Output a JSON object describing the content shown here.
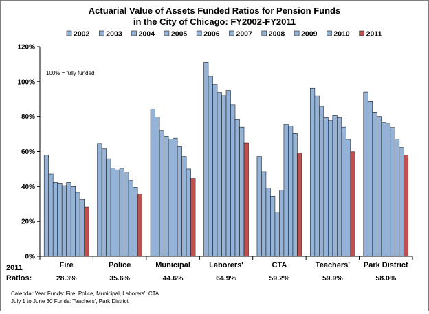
{
  "chart_data": {
    "type": "bar",
    "title": "Actuarial Value of Assets Funded Ratios for Pension Funds",
    "subtitle": "in the City of Chicago: FY2002-FY2011",
    "ylim": [
      0,
      120
    ],
    "yticks": [
      "0%",
      "20%",
      "40%",
      "60%",
      "80%",
      "100%",
      "120%"
    ],
    "grid": false,
    "legend_position": "top",
    "annotation": "100% = fully funded",
    "categories": [
      "Fire",
      "Police",
      "Municipal",
      "Laborers'",
      "CTA",
      "Teachers'",
      "Park District"
    ],
    "series": [
      {
        "name": "2002",
        "color": "#95b3d7",
        "values": [
          58.0,
          64.6,
          84.5,
          111.2,
          57.2,
          96.3,
          94.0
        ]
      },
      {
        "name": "2003",
        "color": "#95b3d7",
        "values": [
          47.2,
          61.5,
          79.7,
          103.1,
          48.4,
          92.0,
          88.8
        ]
      },
      {
        "name": "2004",
        "color": "#95b3d7",
        "values": [
          42.3,
          55.8,
          72.1,
          98.5,
          39.1,
          85.8,
          82.5
        ]
      },
      {
        "name": "2005",
        "color": "#95b3d7",
        "values": [
          41.6,
          50.6,
          68.7,
          93.8,
          34.5,
          79.3,
          80.0
        ]
      },
      {
        "name": "2006",
        "color": "#95b3d7",
        "values": [
          40.5,
          49.5,
          67.1,
          92.1,
          25.3,
          77.9,
          76.7
        ]
      },
      {
        "name": "2007",
        "color": "#95b3d7",
        "values": [
          42.3,
          50.4,
          67.6,
          95.0,
          37.9,
          80.5,
          76.0
        ]
      },
      {
        "name": "2008",
        "color": "#95b3d7",
        "values": [
          40.0,
          48.1,
          62.8,
          86.6,
          75.5,
          79.4,
          73.7
        ]
      },
      {
        "name": "2009",
        "color": "#95b3d7",
        "values": [
          36.6,
          43.4,
          57.2,
          78.5,
          74.6,
          73.9,
          67.1
        ]
      },
      {
        "name": "2010",
        "color": "#95b3d7",
        "values": [
          32.6,
          39.6,
          50.0,
          73.9,
          70.3,
          66.9,
          62.3
        ]
      },
      {
        "name": "2011",
        "color": "#c0504d",
        "values": [
          28.3,
          35.6,
          44.6,
          64.9,
          59.2,
          59.9,
          58.0
        ]
      }
    ],
    "ratios_header": [
      "2011",
      "Ratios:"
    ],
    "ratios": [
      "28.3%",
      "35.6%",
      "44.6%",
      "64.9%",
      "59.2%",
      "59.9%",
      "58.0%"
    ],
    "notes": [
      "Calendar Year Funds: Fire, Police, Municipal, Laborers', CTA",
      "July 1 to June 30 Funds: Teachers', Park District"
    ]
  }
}
